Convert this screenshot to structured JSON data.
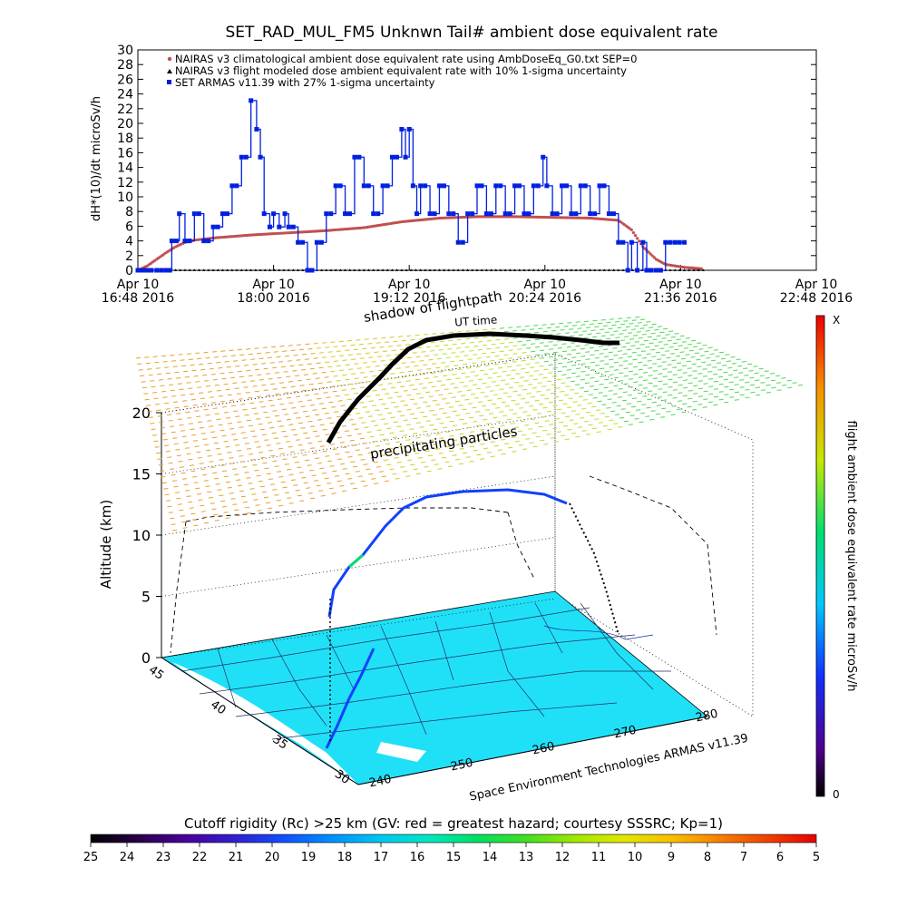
{
  "chart_data": [
    {
      "type": "scatter",
      "title": "SET_RAD_MUL_FM5 Unknwn Tail#  ambient dose equivalent rate",
      "ylabel": "dH*(10)/dt microSv/h",
      "ylim": [
        0,
        30
      ],
      "yticks": [
        "0",
        "2",
        "4",
        "6",
        "8",
        "10",
        "12",
        "14",
        "16",
        "18",
        "20",
        "22",
        "24",
        "26",
        "28",
        "30"
      ],
      "xticks": [
        {
          "t": 0,
          "l1": "Apr 10",
          "l2": "16:48 2016"
        },
        {
          "t": 72,
          "l1": "Apr 10",
          "l2": "18:00 2016"
        },
        {
          "t": 144,
          "l1": "Apr 10",
          "l2": "19:12 2016"
        },
        {
          "t": 216,
          "l1": "Apr 10",
          "l2": "20:24 2016"
        },
        {
          "t": 288,
          "l1": "Apr 10",
          "l2": "21:36 2016"
        },
        {
          "t": 360,
          "l1": "Apr 10",
          "l2": "22:48 2016"
        }
      ],
      "xlim_minutes_after_16_48": [
        0,
        360
      ],
      "legend": [
        {
          "label": "NAIRAS v3 climatological ambient dose equivalent rate using AmbDoseEq_G0.txt SEP=0",
          "color": "#c05050"
        },
        {
          "label": "NAIRAS v3 flight modeled dose ambient equivalent rate with 10% 1-sigma uncertainty",
          "color": "#000000"
        },
        {
          "label": "SET ARMAS v11.39 with 27% 1-sigma uncertainty",
          "color": "#0020e0"
        }
      ],
      "series": [
        {
          "name": "NAIRAS v3 climatological ambient dose equivalent rate using AmbDoseEq_G0.txt SEP=0",
          "x_minutes_after_16_48": [
            0,
            5,
            10,
            15,
            20,
            25,
            30,
            40,
            60,
            80,
            100,
            120,
            140,
            160,
            180,
            200,
            220,
            240,
            255,
            262,
            268,
            275,
            280,
            290,
            300
          ],
          "values": [
            0,
            0.6,
            1.5,
            2.4,
            3.2,
            3.8,
            4.1,
            4.4,
            4.8,
            5.1,
            5.4,
            5.8,
            6.6,
            7.1,
            7.3,
            7.3,
            7.2,
            7.1,
            6.8,
            5.5,
            3.2,
            1.5,
            0.8,
            0.4,
            0.2
          ]
        },
        {
          "name": "NAIRAS v3 flight modeled dose ambient equivalent rate with 10% 1-sigma uncertainty",
          "x_minutes_after_16_48": [
            0,
            300
          ],
          "values": [
            0,
            0
          ]
        },
        {
          "name": "SET ARMAS v11.39 with 27% 1-sigma uncertainty",
          "x_minutes_after_16_48": [
            0,
            10,
            17,
            18,
            22,
            25,
            30,
            35,
            40,
            45,
            50,
            55,
            60,
            63,
            65,
            67,
            70,
            72,
            75,
            78,
            80,
            85,
            90,
            95,
            100,
            105,
            110,
            115,
            120,
            125,
            130,
            135,
            140,
            142,
            144,
            146,
            148,
            150,
            155,
            160,
            165,
            170,
            175,
            180,
            185,
            190,
            195,
            200,
            205,
            210,
            215,
            217,
            220,
            225,
            230,
            235,
            240,
            245,
            250,
            255,
            260,
            262,
            265,
            268,
            270,
            275,
            280,
            285,
            290
          ],
          "values": [
            0,
            0,
            0,
            4,
            7.7,
            4,
            7.7,
            4,
            5.9,
            7.7,
            11.5,
            15.4,
            23.1,
            19.2,
            15.4,
            7.7,
            5.9,
            7.7,
            5.9,
            7.7,
            5.9,
            3.8,
            0,
            3.8,
            7.7,
            11.5,
            7.7,
            15.4,
            11.5,
            7.7,
            11.5,
            15.4,
            19.2,
            15.4,
            19.2,
            11.5,
            7.7,
            11.5,
            7.7,
            11.5,
            7.7,
            3.8,
            7.7,
            11.5,
            7.7,
            11.5,
            7.7,
            11.5,
            7.7,
            11.5,
            15.4,
            11.5,
            7.7,
            11.5,
            7.7,
            11.5,
            7.7,
            11.5,
            7.7,
            3.8,
            0,
            3.8,
            0,
            3.8,
            0,
            0,
            3.8,
            3.8,
            3.8
          ]
        }
      ]
    },
    {
      "type": "surface-3d",
      "zlabel": "Altitude (km)",
      "zticks": [
        "0",
        "5",
        "10",
        "15",
        "20"
      ],
      "lat_ticks": [
        "45",
        "40",
        "35",
        "30"
      ],
      "lon_ticks": [
        "240",
        "250",
        "260",
        "270",
        "280"
      ],
      "annotations": [
        "shadow of flightpath",
        "UT time",
        "precipitating particles",
        "Space Environment Technologies ARMAS v11.39"
      ],
      "colorbar_label": "flight ambient dose equivalent rate microSv/h",
      "colorbar_top": "X",
      "colorbar_bottom": "0"
    },
    {
      "type": "colorbar",
      "title": "Cutoff rigidity (Rc) >25 km (GV: red = greatest hazard; courtesy SSSRC; Kp=1)",
      "ticks": [
        "25",
        "24",
        "23",
        "22",
        "21",
        "20",
        "19",
        "18",
        "17",
        "16",
        "15",
        "14",
        "13",
        "12",
        "11",
        "10",
        "9",
        "8",
        "7",
        "6",
        "5"
      ],
      "colors": [
        "#000000",
        "#2a004a",
        "#4a00a0",
        "#3020d0",
        "#1050ff",
        "#0090ff",
        "#00c8f0",
        "#00e8c0",
        "#00e060",
        "#40e020",
        "#a0e800",
        "#e0e800",
        "#f8c000",
        "#f88000",
        "#f04000",
        "#e80000"
      ]
    }
  ]
}
